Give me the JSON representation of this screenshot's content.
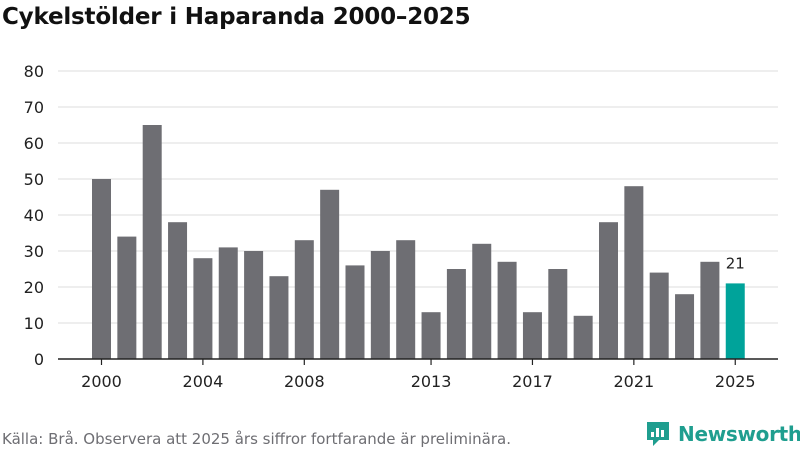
{
  "title": "Cykelstölder i Haparanda 2000–2025",
  "source": "Källa: Brå. Observera att 2025 års siffror fortfarande är preliminära.",
  "brand": "Newsworthy",
  "colors": {
    "bar": "#6e6e73",
    "highlight": "#00a39a",
    "grid": "#dddddd",
    "axis": "#222222",
    "brand": "#1f9e8f"
  },
  "chart_data": {
    "type": "bar",
    "title": "Cykelstölder i Haparanda 2000–2025",
    "xlabel": "",
    "ylabel": "",
    "categories": [
      2000,
      2001,
      2002,
      2003,
      2004,
      2005,
      2006,
      2007,
      2008,
      2009,
      2010,
      2011,
      2012,
      2013,
      2014,
      2015,
      2016,
      2017,
      2018,
      2019,
      2020,
      2021,
      2022,
      2023,
      2024,
      2025
    ],
    "values": [
      50,
      34,
      65,
      38,
      28,
      31,
      30,
      23,
      33,
      47,
      26,
      30,
      33,
      13,
      25,
      32,
      27,
      13,
      25,
      12,
      38,
      48,
      24,
      18,
      27,
      21
    ],
    "highlight_index": 25,
    "highlight_label": "21",
    "ylim": [
      0,
      80
    ],
    "yticks": [
      0,
      10,
      20,
      30,
      40,
      50,
      60,
      70,
      80
    ],
    "xtick_labels": [
      {
        "index": 0,
        "label": "2000"
      },
      {
        "index": 4,
        "label": "2004"
      },
      {
        "index": 8,
        "label": "2008"
      },
      {
        "index": 13,
        "label": "2013"
      },
      {
        "index": 17,
        "label": "2017"
      },
      {
        "index": 21,
        "label": "2021"
      },
      {
        "index": 25,
        "label": "2025"
      }
    ],
    "grid": true
  }
}
